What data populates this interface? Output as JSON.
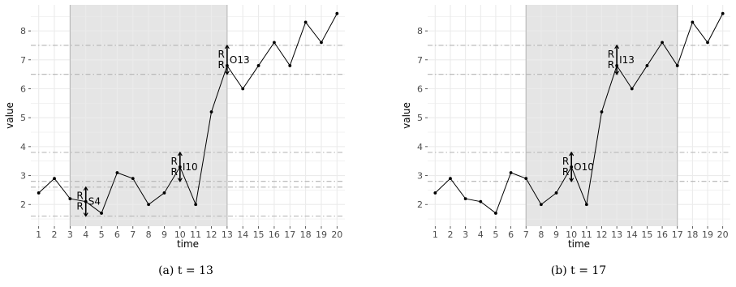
{
  "chart_data": [
    {
      "type": "line",
      "xlabel": "time",
      "ylabel": "value",
      "caption": "(a) t = 13",
      "x": [
        1,
        2,
        3,
        4,
        5,
        6,
        7,
        8,
        9,
        10,
        11,
        12,
        13,
        14,
        15,
        16,
        17,
        18,
        19,
        20
      ],
      "values": [
        2.4,
        2.9,
        2.2,
        2.1,
        1.7,
        3.1,
        2.9,
        2.0,
        2.4,
        3.3,
        2.0,
        5.2,
        6.8,
        6.0,
        6.8,
        7.6,
        6.8,
        8.3,
        7.6,
        8.6
      ],
      "xlim": [
        0.5,
        20.5
      ],
      "ylim": [
        1.25,
        8.9
      ],
      "yticks": [
        2,
        3,
        4,
        5,
        6,
        7,
        8
      ],
      "xticks": [
        1,
        2,
        3,
        4,
        5,
        6,
        7,
        8,
        9,
        10,
        11,
        12,
        13,
        14,
        15,
        16,
        17,
        18,
        19,
        20
      ],
      "grid": true,
      "shaded_window": [
        3,
        13
      ],
      "hlines": [
        1.6,
        2.6,
        2.8,
        3.8,
        6.5,
        7.5
      ],
      "annotations": [
        {
          "x": 4,
          "y_low": 1.6,
          "y_high": 2.6,
          "upper_label": "R",
          "lower_label": "R",
          "tag": "S4"
        },
        {
          "x": 10,
          "y_low": 2.8,
          "y_high": 3.8,
          "upper_label": "R",
          "lower_label": "R",
          "tag": "I10"
        },
        {
          "x": 13,
          "y_low": 6.5,
          "y_high": 7.5,
          "upper_label": "R",
          "lower_label": "R",
          "tag": "O13"
        }
      ]
    },
    {
      "type": "line",
      "xlabel": "time",
      "ylabel": "value",
      "caption": "(b) t = 17",
      "x": [
        1,
        2,
        3,
        4,
        5,
        6,
        7,
        8,
        9,
        10,
        11,
        12,
        13,
        14,
        15,
        16,
        17,
        18,
        19,
        20
      ],
      "values": [
        2.4,
        2.9,
        2.2,
        2.1,
        1.7,
        3.1,
        2.9,
        2.0,
        2.4,
        3.3,
        2.0,
        5.2,
        6.8,
        6.0,
        6.8,
        7.6,
        6.8,
        8.3,
        7.6,
        8.6
      ],
      "xlim": [
        0.5,
        20.5
      ],
      "ylim": [
        1.25,
        8.9
      ],
      "yticks": [
        2,
        3,
        4,
        5,
        6,
        7,
        8
      ],
      "xticks": [
        1,
        2,
        3,
        4,
        5,
        6,
        7,
        8,
        9,
        10,
        11,
        12,
        13,
        14,
        15,
        16,
        17,
        18,
        19,
        20
      ],
      "grid": true,
      "shaded_window": [
        7,
        17
      ],
      "hlines": [
        2.8,
        3.8,
        6.5,
        7.5
      ],
      "annotations": [
        {
          "x": 10,
          "y_low": 2.8,
          "y_high": 3.8,
          "upper_label": "R",
          "lower_label": "R",
          "tag": "O10"
        },
        {
          "x": 13,
          "y_low": 6.5,
          "y_high": 7.5,
          "upper_label": "R",
          "lower_label": "R",
          "tag": "I13"
        }
      ]
    }
  ],
  "colors": {
    "panel_bg": "#ffffff",
    "grid": "#ebebeb",
    "shade": "#e5e5e5",
    "shade_border": "#b3b3b3",
    "hline": "#b3b3b3",
    "line": "#000000",
    "text": "#4d4d4d"
  }
}
